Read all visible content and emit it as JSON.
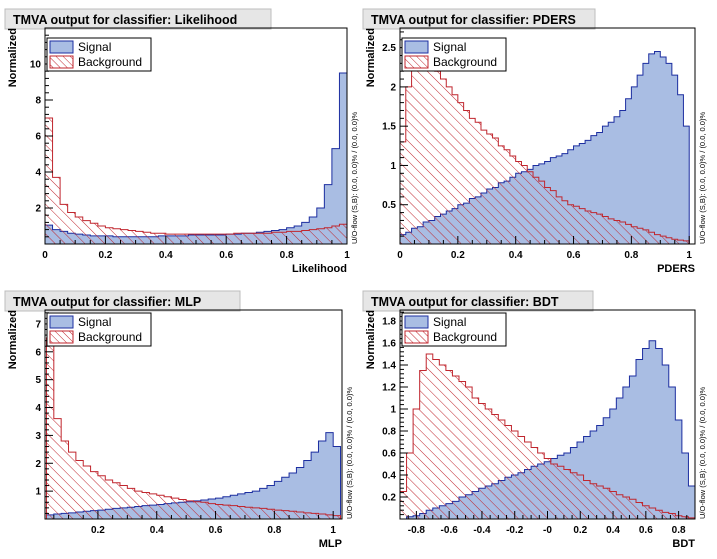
{
  "colors": {
    "signal_fill": "#a9bde3",
    "signal_line": "#1c2ea0",
    "background_line": "#c0262e",
    "background_hatch": "#c0262e"
  },
  "chart_data": [
    {
      "type": "area",
      "title": "TMVA output for classifier: Likelihood",
      "xlabel": "Likelihood",
      "ylabel": "Normalized",
      "side_label": "U/O-flow (S,B): (0.0, 0.0)% / (0.0, 0.0)%",
      "xlim": [
        0,
        1
      ],
      "ylim": [
        0,
        12
      ],
      "xticks": [
        0,
        0.2,
        0.4,
        0.6,
        0.8,
        1
      ],
      "xtick_labels": [
        "0",
        "0.2",
        "0.4",
        "0.6",
        "0.8",
        "1"
      ],
      "yticks": [
        2,
        4,
        6,
        8,
        10
      ],
      "ytick_labels": [
        "2",
        "4",
        "6",
        "8",
        "10"
      ],
      "legend_position": "top-left",
      "series": [
        {
          "name": "Signal",
          "style": "filled",
          "bins": 40,
          "range": [
            0,
            1
          ],
          "values": [
            1.05,
            0.8,
            0.7,
            0.6,
            0.55,
            0.5,
            0.45,
            0.45,
            0.45,
            0.4,
            0.4,
            0.4,
            0.4,
            0.4,
            0.4,
            0.45,
            0.45,
            0.45,
            0.45,
            0.5,
            0.5,
            0.5,
            0.5,
            0.5,
            0.55,
            0.55,
            0.6,
            0.6,
            0.65,
            0.7,
            0.75,
            0.8,
            0.9,
            1.0,
            1.2,
            1.5,
            2.0,
            3.3,
            5.3,
            9.5
          ]
        },
        {
          "name": "Background",
          "style": "hatched",
          "bins": 40,
          "range": [
            0,
            1
          ],
          "values": [
            7.0,
            3.7,
            2.2,
            1.75,
            1.5,
            1.3,
            1.15,
            1.0,
            0.9,
            0.85,
            0.8,
            0.75,
            0.7,
            0.65,
            0.6,
            0.6,
            0.55,
            0.55,
            0.55,
            0.55,
            0.55,
            0.55,
            0.55,
            0.55,
            0.55,
            0.6,
            0.6,
            0.6,
            0.6,
            0.6,
            0.65,
            0.65,
            0.7,
            0.7,
            0.75,
            0.8,
            0.85,
            0.9,
            1.0,
            1.1
          ]
        }
      ]
    },
    {
      "type": "area",
      "title": "TMVA output for classifier: PDERS",
      "xlabel": "PDERS",
      "ylabel": "Normalized",
      "side_label": "U/O-flow (S,B): (0.0, 0.0)% / (0.0, 0.0)%",
      "xlim": [
        0,
        1.02
      ],
      "ylim": [
        0,
        2.75
      ],
      "xticks": [
        0,
        0.2,
        0.4,
        0.6,
        0.8,
        1
      ],
      "xtick_labels": [
        "0",
        "0.2",
        "0.4",
        "0.6",
        "0.8",
        "1"
      ],
      "yticks": [
        0.5,
        1,
        1.5,
        2,
        2.5
      ],
      "ytick_labels": [
        "0.5",
        "1",
        "1.5",
        "2",
        "2.5"
      ],
      "legend_position": "top-left",
      "series": [
        {
          "name": "Signal",
          "style": "filled",
          "bins": 50,
          "range": [
            0,
            1
          ],
          "values": [
            0.12,
            0.15,
            0.2,
            0.22,
            0.28,
            0.3,
            0.35,
            0.38,
            0.42,
            0.45,
            0.5,
            0.52,
            0.58,
            0.6,
            0.65,
            0.7,
            0.72,
            0.78,
            0.8,
            0.85,
            0.9,
            0.92,
            0.95,
            1.0,
            1.02,
            1.05,
            1.1,
            1.12,
            1.15,
            1.2,
            1.25,
            1.28,
            1.32,
            1.38,
            1.42,
            1.5,
            1.55,
            1.62,
            1.7,
            1.85,
            2.0,
            2.15,
            2.3,
            2.42,
            2.45,
            2.38,
            2.3,
            2.15,
            1.9,
            1.5
          ]
        },
        {
          "name": "Background",
          "style": "hatched",
          "bins": 50,
          "range": [
            0,
            1
          ],
          "values": [
            1.3,
            2.0,
            2.3,
            2.45,
            2.4,
            2.3,
            2.2,
            2.1,
            2.0,
            1.9,
            1.8,
            1.7,
            1.6,
            1.55,
            1.45,
            1.4,
            1.35,
            1.25,
            1.2,
            1.12,
            1.05,
            1.0,
            0.92,
            0.85,
            0.8,
            0.72,
            0.68,
            0.6,
            0.55,
            0.5,
            0.48,
            0.45,
            0.42,
            0.4,
            0.38,
            0.35,
            0.32,
            0.3,
            0.28,
            0.25,
            0.22,
            0.2,
            0.18,
            0.15,
            0.12,
            0.1,
            0.08,
            0.06,
            0.05,
            0.04
          ]
        }
      ]
    },
    {
      "type": "area",
      "title": "TMVA output for classifier: MLP",
      "xlabel": "MLP",
      "ylabel": "Normalized",
      "side_label": "U/O-flow (S,B): (0.0, 0.0)% / (0.0, 0.0)%",
      "xlim": [
        0.02,
        1.03
      ],
      "ylim": [
        0,
        7.5
      ],
      "xticks": [
        0.2,
        0.4,
        0.6,
        0.8,
        1
      ],
      "xtick_labels": [
        "0.2",
        "0.4",
        "0.6",
        "0.8",
        "1"
      ],
      "yticks": [
        1,
        2,
        3,
        4,
        5,
        6,
        7
      ],
      "ytick_labels": [
        "1",
        "2",
        "3",
        "4",
        "5",
        "6",
        "7"
      ],
      "legend_position": "top-left",
      "series": [
        {
          "name": "Signal",
          "style": "filled",
          "bins": 40,
          "range": [
            0.025,
            1.025
          ],
          "values": [
            0.15,
            0.18,
            0.2,
            0.22,
            0.25,
            0.28,
            0.3,
            0.32,
            0.35,
            0.38,
            0.4,
            0.42,
            0.45,
            0.48,
            0.5,
            0.52,
            0.55,
            0.58,
            0.6,
            0.62,
            0.65,
            0.68,
            0.72,
            0.75,
            0.8,
            0.85,
            0.9,
            0.95,
            1.0,
            1.1,
            1.2,
            1.35,
            1.5,
            1.65,
            1.85,
            2.1,
            2.4,
            2.8,
            3.1,
            2.6
          ]
        },
        {
          "name": "Background",
          "style": "hatched",
          "bins": 40,
          "range": [
            0.025,
            1.025
          ],
          "values": [
            6.5,
            3.6,
            2.8,
            2.4,
            2.1,
            1.9,
            1.7,
            1.55,
            1.4,
            1.3,
            1.2,
            1.1,
            1.0,
            0.95,
            0.9,
            0.85,
            0.8,
            0.75,
            0.7,
            0.65,
            0.62,
            0.6,
            0.55,
            0.52,
            0.5,
            0.48,
            0.45,
            0.42,
            0.4,
            0.38,
            0.35,
            0.32,
            0.3,
            0.28,
            0.25,
            0.22,
            0.2,
            0.18,
            0.15,
            0.12
          ]
        }
      ]
    },
    {
      "type": "area",
      "title": "TMVA output for classifier: BDT",
      "xlabel": "BDT",
      "ylabel": "Normalized",
      "side_label": "U/O-flow (S,B): (0.0, 0.0)% / (0.0, 0.0)%",
      "xlim": [
        -0.9,
        0.9
      ],
      "ylim": [
        0,
        1.9
      ],
      "xticks": [
        -0.8,
        -0.6,
        -0.4,
        -0.2,
        0,
        0.2,
        0.4,
        0.6,
        0.8
      ],
      "xtick_labels": [
        "-0.8",
        "-0.6",
        "-0.4",
        "-0.2",
        "-0",
        "0.2",
        "0.4",
        "0.6",
        "0.8"
      ],
      "yticks": [
        0.2,
        0.4,
        0.6,
        0.8,
        1,
        1.2,
        1.4,
        1.6,
        1.8
      ],
      "ytick_labels": [
        "0.2",
        "0.4",
        "0.6",
        "0.8",
        "1",
        "1.2",
        "1.4",
        "1.6",
        "1.8"
      ],
      "legend_position": "top-left",
      "series": [
        {
          "name": "Signal",
          "style": "filled",
          "bins": 45,
          "range": [
            -0.9,
            0.9
          ],
          "values": [
            0.0,
            0.02,
            0.03,
            0.05,
            0.08,
            0.1,
            0.12,
            0.14,
            0.16,
            0.2,
            0.22,
            0.25,
            0.28,
            0.3,
            0.32,
            0.35,
            0.38,
            0.4,
            0.42,
            0.45,
            0.48,
            0.5,
            0.52,
            0.55,
            0.58,
            0.6,
            0.65,
            0.7,
            0.75,
            0.8,
            0.85,
            0.92,
            1.0,
            1.1,
            1.2,
            1.3,
            1.45,
            1.55,
            1.62,
            1.55,
            1.4,
            1.2,
            0.9,
            0.6,
            0.3
          ]
        },
        {
          "name": "Background",
          "style": "hatched",
          "bins": 45,
          "range": [
            -0.9,
            0.9
          ],
          "values": [
            0.25,
            0.6,
            1.0,
            1.35,
            1.5,
            1.45,
            1.4,
            1.35,
            1.3,
            1.25,
            1.2,
            1.1,
            1.05,
            1.0,
            0.95,
            0.9,
            0.85,
            0.8,
            0.75,
            0.7,
            0.65,
            0.6,
            0.55,
            0.5,
            0.48,
            0.45,
            0.42,
            0.4,
            0.35,
            0.32,
            0.3,
            0.28,
            0.25,
            0.22,
            0.2,
            0.18,
            0.15,
            0.12,
            0.1,
            0.08,
            0.06,
            0.05,
            0.03,
            0.02,
            0.01
          ]
        }
      ]
    }
  ]
}
